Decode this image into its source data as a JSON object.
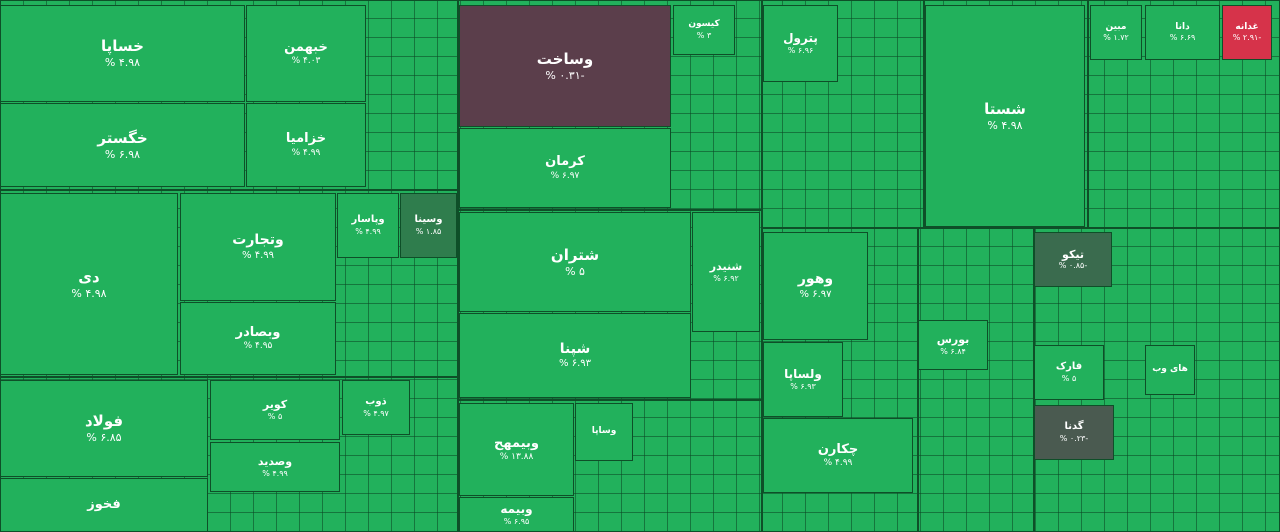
{
  "tiles": [
    {
      "name": "خساپا",
      "change": "۴.۹۸ %",
      "color": "#22b15c"
    },
    {
      "name": "خبهمن",
      "change": "۴.۰۳ %",
      "color": "#22b15c"
    },
    {
      "name": "خگستر",
      "change": "۶.۹۸ %",
      "color": "#22b15c"
    },
    {
      "name": "خزامیا",
      "change": "۴.۹۹ %",
      "color": "#22b15c"
    },
    {
      "name": "وساخت",
      "change": "-۰.۳۱ %",
      "color": "#5b3e4b"
    },
    {
      "name": "کرمان",
      "change": "۶.۹۷ %",
      "color": "#22b15c"
    },
    {
      "name": "کیسون",
      "change": "۳ %",
      "color": "#22b15c"
    },
    {
      "name": "شتران",
      "change": "۵ %",
      "color": "#22b15c"
    },
    {
      "name": "شنیدر",
      "change": "۶.۹۲ %",
      "color": "#22b15c"
    },
    {
      "name": "شپنا",
      "change": "۶.۹۳ %",
      "color": "#22b15c"
    },
    {
      "name": "دی",
      "change": "۴.۹۸ %",
      "color": "#22b15c"
    },
    {
      "name": "وتجارت",
      "change": "۴.۹۹ %",
      "color": "#22b15c"
    },
    {
      "name": "وبصادر",
      "change": "۴.۹۵ %",
      "color": "#22b15c"
    },
    {
      "name": "وپاسار",
      "change": "۴.۹۹ %",
      "color": "#22b15c"
    },
    {
      "name": "وسینا",
      "change": "۱.۸۵ %",
      "color": "#2f7d4d"
    },
    {
      "name": "فولاد",
      "change": "۶.۸۵ %",
      "color": "#22b15c"
    },
    {
      "name": "فخوز",
      "color": "#22b15c"
    },
    {
      "name": "کویر",
      "change": "۵ %",
      "color": "#22b15c"
    },
    {
      "name": "وصدید",
      "change": "۴.۹۹ %",
      "color": "#22b15c"
    },
    {
      "name": "ذوب",
      "change": "۴.۹۷ %",
      "color": "#22b15c"
    },
    {
      "name": "وبیمهح",
      "change": "۱۳.۸۸ %",
      "color": "#22b15c"
    },
    {
      "name": "وبیمه",
      "change": "۶.۹۵ %",
      "color": "#22b15c"
    },
    {
      "name": "وساپا",
      "color": "#22b15c"
    },
    {
      "name": "پترول",
      "change": "۶.۹۶ %",
      "color": "#22b15c"
    },
    {
      "name": "شستا",
      "change": "۴.۹۸ %",
      "color": "#22b15c"
    },
    {
      "name": "وهور",
      "change": "۶.۹۷ %",
      "color": "#22b15c"
    },
    {
      "name": "ولساپا",
      "change": "۶.۹۳ %",
      "color": "#22b15c"
    },
    {
      "name": "چکارن",
      "change": "۴.۹۹ %",
      "color": "#22b15c"
    },
    {
      "name": "بورس",
      "change": "۶.۸۴ %",
      "color": "#22b15c"
    },
    {
      "name": "تیکو",
      "change": "-۰.۸۵ %",
      "color": "#3a6b4e"
    },
    {
      "name": "فارک",
      "change": "۵ %",
      "color": "#22b15c"
    },
    {
      "name": "گدنا",
      "change": "-۰.۲۳ %",
      "color": "#4a5a50"
    },
    {
      "name": "مبین",
      "change": "۱.۷۲ %",
      "color": "#22b15c"
    },
    {
      "name": "دانا",
      "change": "۶.۶۹ %",
      "color": "#22b15c"
    },
    {
      "name": "غدانه",
      "change": "-۲.۹۱ %",
      "color": "#d6334a"
    },
    {
      "name": "های وب",
      "color": "#22b15c"
    }
  ]
}
